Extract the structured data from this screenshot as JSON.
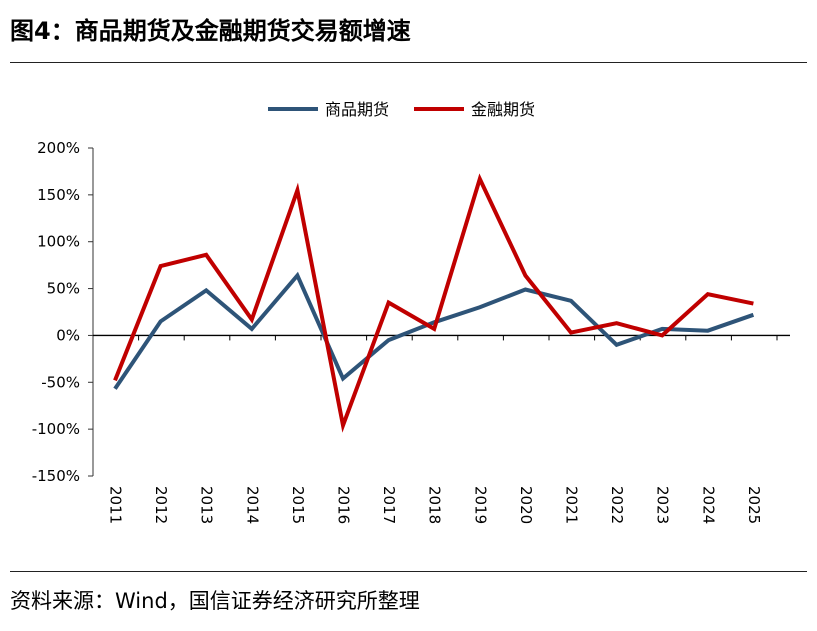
{
  "title": "图4：商品期货及金融期货交易额增速",
  "source": "资料来源：Wind，国信证券经济研究所整理",
  "chart_data": {
    "type": "line",
    "categories": [
      "2011",
      "2012",
      "2013",
      "2014",
      "2015",
      "2016",
      "2017",
      "2018",
      "2019",
      "2020",
      "2021",
      "2022",
      "2023",
      "2024",
      "2025"
    ],
    "series": [
      {
        "name": "商品期货",
        "color": "#2e5478",
        "values": [
          -57,
          15,
          48,
          7,
          64,
          -46,
          -5,
          14,
          30,
          49,
          37,
          -10,
          7,
          5,
          22
        ]
      },
      {
        "name": "金融期货",
        "color": "#c00000",
        "values": [
          -48,
          74,
          86,
          17,
          155,
          -96,
          35,
          7,
          167,
          64,
          3,
          13,
          0,
          44,
          34
        ]
      }
    ],
    "yticks": [
      "200%",
      "150%",
      "100%",
      "50%",
      "0%",
      "-50%",
      "-100%",
      "-150%"
    ],
    "ylim": [
      -150,
      200
    ],
    "legend_position": "top-center",
    "grid": false
  }
}
